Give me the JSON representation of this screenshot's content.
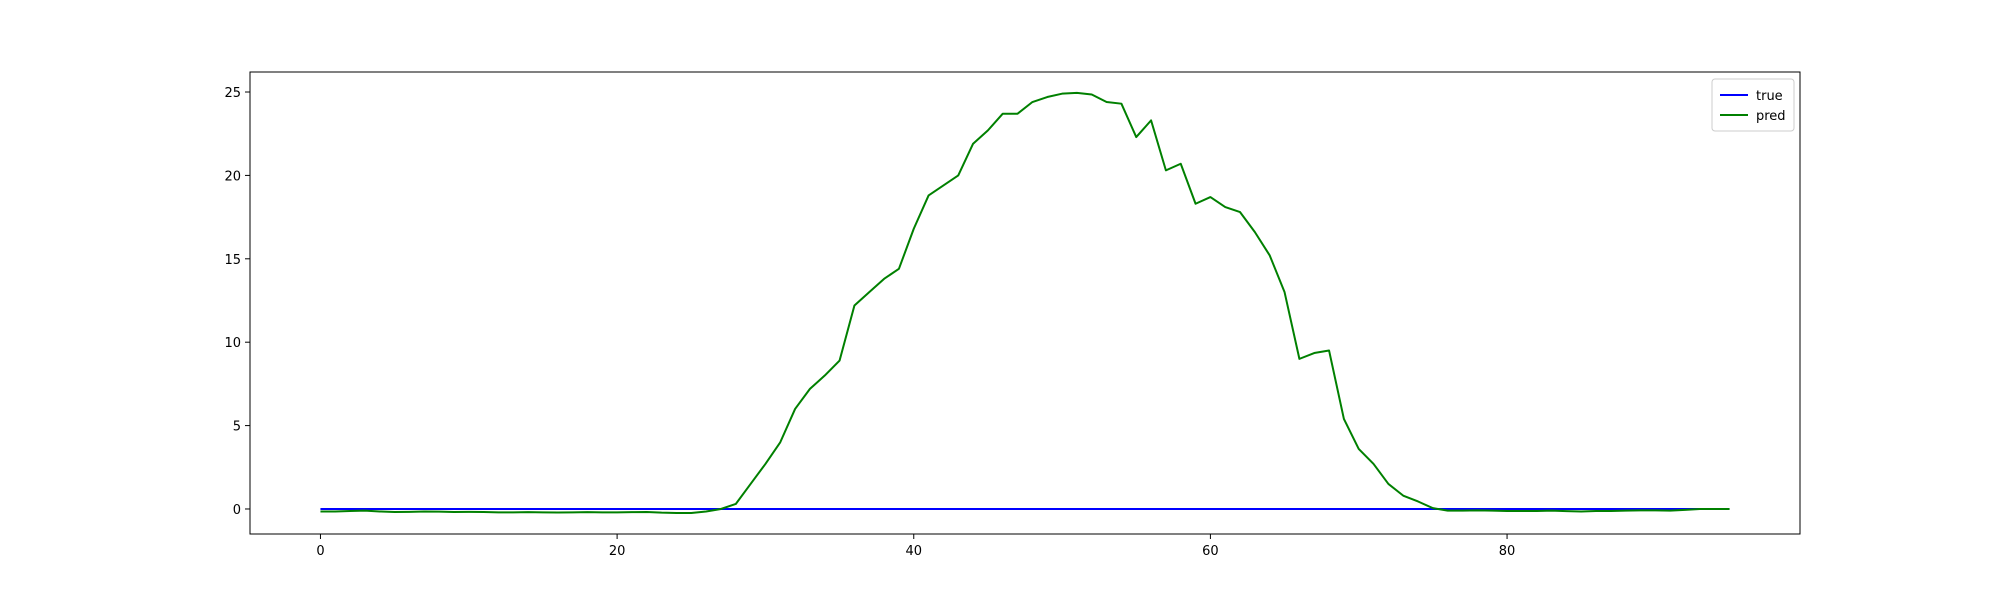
{
  "chart_data": {
    "type": "line",
    "title": "",
    "xlabel": "",
    "ylabel": "",
    "xlim": [
      -4.75,
      99.75
    ],
    "ylim": [
      -1.5,
      26.2
    ],
    "xticks": [
      0,
      20,
      40,
      60,
      80
    ],
    "yticks": [
      0,
      5,
      10,
      15,
      20,
      25
    ],
    "grid": false,
    "legend": {
      "position": "top-right",
      "entries": [
        "true",
        "pred"
      ]
    },
    "x": [
      0,
      1,
      2,
      3,
      4,
      5,
      6,
      7,
      8,
      9,
      10,
      11,
      12,
      13,
      14,
      15,
      16,
      17,
      18,
      19,
      20,
      21,
      22,
      23,
      24,
      25,
      26,
      27,
      28,
      29,
      30,
      31,
      32,
      33,
      34,
      35,
      36,
      37,
      38,
      39,
      40,
      41,
      42,
      43,
      44,
      45,
      46,
      47,
      48,
      49,
      50,
      51,
      52,
      53,
      54,
      55,
      56,
      57,
      58,
      59,
      60,
      61,
      62,
      63,
      64,
      65,
      66,
      67,
      68,
      69,
      70,
      71,
      72,
      73,
      74,
      75,
      76,
      77,
      78,
      79,
      80,
      81,
      82,
      83,
      84,
      85,
      86,
      87,
      88,
      89,
      90,
      91,
      92,
      93,
      94,
      95
    ],
    "series": [
      {
        "name": "true",
        "color": "#0000ff",
        "values": [
          0,
          0,
          0,
          0,
          0,
          0,
          0,
          0,
          0,
          0,
          0,
          0,
          0,
          0,
          0,
          0,
          0,
          0,
          0,
          0,
          0,
          0,
          0,
          0,
          0,
          0,
          0,
          0,
          0,
          0,
          0,
          0,
          0,
          0,
          0,
          0,
          0,
          0,
          0,
          0,
          0,
          0,
          0,
          0,
          0,
          0,
          0,
          0,
          0,
          0,
          0,
          0,
          0,
          0,
          0,
          0,
          0,
          0,
          0,
          0,
          0,
          0,
          0,
          0,
          0,
          0,
          0,
          0,
          0,
          0,
          0,
          0,
          0,
          0,
          0,
          0,
          0,
          0,
          0,
          0,
          0,
          0,
          0,
          0,
          0,
          0,
          0,
          0,
          0,
          0,
          0,
          0,
          0,
          0,
          0,
          0
        ]
      },
      {
        "name": "pred",
        "color": "#008000",
        "values": [
          -0.15,
          -0.15,
          -0.12,
          -0.1,
          -0.15,
          -0.18,
          -0.17,
          -0.15,
          -0.16,
          -0.18,
          -0.17,
          -0.18,
          -0.2,
          -0.2,
          -0.19,
          -0.2,
          -0.21,
          -0.2,
          -0.19,
          -0.2,
          -0.2,
          -0.19,
          -0.18,
          -0.22,
          -0.24,
          -0.24,
          -0.15,
          0.0,
          0.3,
          1.5,
          2.7,
          4.0,
          6.0,
          7.2,
          8.0,
          8.9,
          12.2,
          13.0,
          13.8,
          14.4,
          16.8,
          18.8,
          19.4,
          20.0,
          21.9,
          22.7,
          23.7,
          23.7,
          24.4,
          24.7,
          24.9,
          24.95,
          24.85,
          24.4,
          24.3,
          22.3,
          23.3,
          20.3,
          20.7,
          18.3,
          18.7,
          18.1,
          17.8,
          16.6,
          15.2,
          13.0,
          9.0,
          9.35,
          9.5,
          5.4,
          3.6,
          2.7,
          1.5,
          0.8,
          0.45,
          0.05,
          -0.1,
          -0.1,
          -0.08,
          -0.1,
          -0.12,
          -0.12,
          -0.12,
          -0.1,
          -0.13,
          -0.15,
          -0.12,
          -0.12,
          -0.1,
          -0.08,
          -0.08,
          -0.1,
          -0.05,
          0.0,
          0.0,
          0.0
        ]
      }
    ]
  }
}
